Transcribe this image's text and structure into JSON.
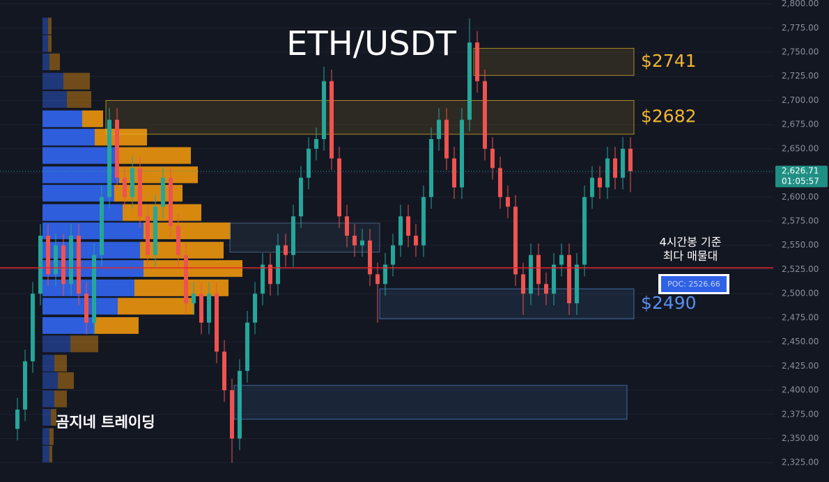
{
  "chart_data": {
    "type": "candlestick",
    "title": "ETH/USDT",
    "watermark": "곰지네 트레이딩",
    "ylim": [
      2305,
      2804
    ],
    "yticks": [
      {
        "value": 2800,
        "label": "2,800.00"
      },
      {
        "value": 2775,
        "label": "2,775.00"
      },
      {
        "value": 2750,
        "label": "2,750.00"
      },
      {
        "value": 2725,
        "label": "2,725.00"
      },
      {
        "value": 2700,
        "label": "2,700.00"
      },
      {
        "value": 2675,
        "label": "2,675.00"
      },
      {
        "value": 2650,
        "label": "2,650.00"
      },
      {
        "value": 2625,
        "label": "2,625.00"
      },
      {
        "value": 2600,
        "label": "2,600.00"
      },
      {
        "value": 2575,
        "label": "2,575.00"
      },
      {
        "value": 2550,
        "label": "2,550.00"
      },
      {
        "value": 2525,
        "label": "2,525.00"
      },
      {
        "value": 2500,
        "label": "2,500.00"
      },
      {
        "value": 2475,
        "label": "2,475.00"
      },
      {
        "value": 2450,
        "label": "2,450.00"
      },
      {
        "value": 2425,
        "label": "2,425.00"
      },
      {
        "value": 2400,
        "label": "2,400.00"
      },
      {
        "value": 2375,
        "label": "2,375.00"
      },
      {
        "value": 2350,
        "label": "2,350.00"
      },
      {
        "value": 2325,
        "label": "2,325.00"
      }
    ],
    "grid": true,
    "up_color": "#26a69a",
    "down_color": "#ef5350",
    "open": [
      2360,
      2380,
      2430,
      2500,
      2560,
      2520,
      2550,
      2510,
      2560,
      2500,
      2470,
      2540,
      2600,
      2680,
      2620,
      2600,
      2630,
      2580,
      2540,
      2590,
      2620,
      2570,
      2540,
      2490,
      2500,
      2470,
      2500,
      2440,
      2400,
      2350,
      2420,
      2470,
      2500,
      2530,
      2510,
      2550,
      2540,
      2580,
      2620,
      2650,
      2660,
      2720,
      2640,
      2580,
      2560,
      2550,
      2555,
      2520,
      2510,
      2530,
      2550,
      2580,
      2560,
      2550,
      2600,
      2660,
      2680,
      2640,
      2610,
      2680,
      2760,
      2720,
      2650,
      2630,
      2600,
      2590,
      2520,
      2500,
      2540,
      2510,
      2500,
      2530,
      2540,
      2490,
      2530,
      2600,
      2620,
      2610,
      2640,
      2620,
      2650
    ],
    "high": [
      2392,
      2442,
      2512,
      2572,
      2572,
      2562,
      2562,
      2572,
      2572,
      2512,
      2552,
      2612,
      2692,
      2692,
      2632,
      2642,
      2642,
      2592,
      2602,
      2632,
      2632,
      2582,
      2552,
      2512,
      2512,
      2512,
      2512,
      2452,
      2412,
      2432,
      2482,
      2512,
      2542,
      2542,
      2562,
      2562,
      2592,
      2632,
      2662,
      2672,
      2735,
      2732,
      2652,
      2592,
      2572,
      2567,
      2567,
      2532,
      2542,
      2562,
      2592,
      2592,
      2572,
      2612,
      2672,
      2692,
      2692,
      2652,
      2692,
      2785,
      2772,
      2732,
      2662,
      2642,
      2612,
      2602,
      2532,
      2552,
      2552,
      2522,
      2542,
      2552,
      2552,
      2542,
      2612,
      2632,
      2632,
      2652,
      2652,
      2662,
      2662
    ],
    "low": [
      2348,
      2368,
      2418,
      2488,
      2508,
      2508,
      2498,
      2498,
      2488,
      2458,
      2458,
      2528,
      2588,
      2608,
      2588,
      2588,
      2568,
      2528,
      2528,
      2578,
      2558,
      2528,
      2478,
      2478,
      2458,
      2458,
      2428,
      2388,
      2325,
      2338,
      2408,
      2458,
      2488,
      2498,
      2498,
      2528,
      2528,
      2568,
      2608,
      2638,
      2648,
      2628,
      2568,
      2548,
      2538,
      2538,
      2508,
      2470,
      2498,
      2518,
      2538,
      2548,
      2538,
      2538,
      2588,
      2648,
      2628,
      2598,
      2598,
      2668,
      2708,
      2638,
      2618,
      2588,
      2578,
      2508,
      2478,
      2488,
      2498,
      2488,
      2488,
      2518,
      2478,
      2478,
      2518,
      2588,
      2598,
      2598,
      2608,
      2608,
      2605
    ],
    "close": [
      2380,
      2430,
      2500,
      2560,
      2520,
      2550,
      2510,
      2560,
      2500,
      2470,
      2540,
      2600,
      2680,
      2620,
      2600,
      2630,
      2580,
      2540,
      2590,
      2620,
      2570,
      2540,
      2490,
      2500,
      2470,
      2500,
      2440,
      2400,
      2350,
      2420,
      2470,
      2500,
      2530,
      2510,
      2550,
      2540,
      2580,
      2620,
      2650,
      2660,
      2720,
      2640,
      2580,
      2560,
      2550,
      2555,
      2520,
      2510,
      2530,
      2550,
      2580,
      2560,
      2550,
      2600,
      2660,
      2680,
      2640,
      2610,
      2680,
      2760,
      2720,
      2650,
      2630,
      2600,
      2590,
      2520,
      2500,
      2540,
      2510,
      2500,
      2530,
      2540,
      2490,
      2530,
      2600,
      2620,
      2610,
      2640,
      2620,
      2650,
      2626.71
    ],
    "volume_profile": {
      "prices": [
        2777,
        2759,
        2740,
        2720,
        2701,
        2681,
        2662,
        2643,
        2623,
        2604,
        2584,
        2565,
        2545,
        2526,
        2506,
        2487,
        2467,
        2448,
        2428,
        2410,
        2391,
        2372,
        2352,
        2334
      ],
      "buy": [
        8,
        8,
        10,
        30,
        35,
        57,
        75,
        110,
        110,
        103,
        115,
        145,
        140,
        145,
        132,
        108,
        75,
        40,
        17,
        22,
        17,
        12,
        10,
        10
      ],
      "sell": [
        5,
        5,
        15,
        38,
        35,
        30,
        75,
        103,
        113,
        98,
        113,
        125,
        120,
        142,
        135,
        110,
        63,
        40,
        18,
        23,
        18,
        8,
        6,
        4
      ],
      "buy_color": "#2f62e6",
      "sell_color": "#e08e0f",
      "value_area": [
        2460,
        2690
      ]
    },
    "zones": [
      {
        "top": 2754,
        "bottom": 2726,
        "label": "$2741",
        "color": "#e7b52c"
      },
      {
        "top": 2700,
        "bottom": 2665,
        "label": "$2682",
        "color": "#e7b52c"
      },
      {
        "top": 2573,
        "bottom": 2543,
        "color": "#5a7fa8"
      },
      {
        "top": 2505,
        "bottom": 2474,
        "label": "$2490",
        "color": "#4f8fd9"
      },
      {
        "top": 2405,
        "bottom": 2370,
        "color": "#4f8fd9"
      }
    ],
    "poc": {
      "value": 2526.66,
      "label": "POC: 2526.66",
      "note": [
        "4시간봉 기준",
        "최다 매물대"
      ],
      "color": "#e8262b"
    },
    "last_price": {
      "value": 2626.71,
      "label": "2,626.71",
      "timer": "01:05:57"
    }
  }
}
